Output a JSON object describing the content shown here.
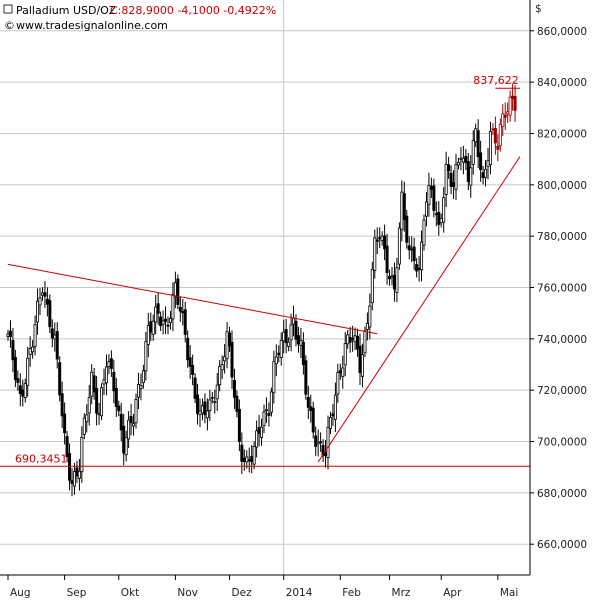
{
  "header": {
    "instrument": "Palladium USD/OZ",
    "quote": "C:828,9000 -4,1000 -0,4922%",
    "website": "www.tradesignalonline.com"
  },
  "chart_data": {
    "type": "candlestick",
    "title": "Palladium USD/OZ",
    "y_unit": "$",
    "ylim": [
      648,
      872
    ],
    "y_ticks": [
      660,
      680,
      700,
      720,
      740,
      760,
      780,
      800,
      820,
      840,
      860
    ],
    "y_tick_labels": [
      "660,0000",
      "680,0000",
      "700,0000",
      "720,0000",
      "740,0000",
      "760,0000",
      "780,0000",
      "800,0000",
      "820,0000",
      "840,0000",
      "860,0000"
    ],
    "x_labels": [
      "Aug",
      "Sep",
      "Okt",
      "Nov",
      "Dez",
      "2014",
      "Feb",
      "Mrz",
      "Apr",
      "Mai"
    ],
    "x_label_day_index": [
      0,
      23,
      45,
      68,
      90,
      112,
      135,
      155,
      176,
      199
    ],
    "grid": true,
    "anchor_series": [
      [
        0,
        740
      ],
      [
        5,
        718
      ],
      [
        10,
        738
      ],
      [
        14,
        762
      ],
      [
        17,
        748
      ],
      [
        19,
        738
      ],
      [
        23,
        700
      ],
      [
        26,
        685
      ],
      [
        29,
        690
      ],
      [
        31,
        705
      ],
      [
        34,
        725
      ],
      [
        37,
        712
      ],
      [
        40,
        730
      ],
      [
        43,
        722
      ],
      [
        47,
        700
      ],
      [
        51,
        708
      ],
      [
        54,
        725
      ],
      [
        57,
        745
      ],
      [
        61,
        748
      ],
      [
        64,
        745
      ],
      [
        68,
        760
      ],
      [
        71,
        745
      ],
      [
        75,
        725
      ],
      [
        78,
        710
      ],
      [
        82,
        712
      ],
      [
        86,
        728
      ],
      [
        89,
        740
      ],
      [
        92,
        718
      ],
      [
        94,
        700
      ],
      [
        97,
        692
      ],
      [
        100,
        695
      ],
      [
        103,
        708
      ],
      [
        106,
        715
      ],
      [
        108,
        728
      ],
      [
        110,
        735
      ],
      [
        113,
        740
      ],
      [
        116,
        748
      ],
      [
        119,
        735
      ],
      [
        122,
        712
      ],
      [
        126,
        700
      ],
      [
        129,
        695
      ],
      [
        132,
        712
      ],
      [
        134,
        725
      ],
      [
        137,
        738
      ],
      [
        140,
        740
      ],
      [
        143,
        730
      ],
      [
        146,
        748
      ],
      [
        149,
        775
      ],
      [
        151,
        780
      ],
      [
        154,
        770
      ],
      [
        157,
        760
      ],
      [
        160,
        792
      ],
      [
        163,
        773
      ],
      [
        165,
        775
      ],
      [
        167,
        765
      ],
      [
        169,
        788
      ],
      [
        172,
        798
      ],
      [
        175,
        784
      ],
      [
        178,
        805
      ],
      [
        181,
        798
      ],
      [
        184,
        815
      ],
      [
        187,
        804
      ],
      [
        190,
        818
      ],
      [
        193,
        800
      ],
      [
        196,
        822
      ],
      [
        199,
        815
      ],
      [
        202,
        828
      ],
      [
        205,
        835
      ],
      [
        206,
        829
      ]
    ],
    "annotations": [
      {
        "type": "horizontal_line",
        "value": 690.3451,
        "label": "690,3451",
        "color": "#cc0000"
      },
      {
        "type": "horizontal_line",
        "value": 837.622,
        "label": "837,622",
        "color": "#cc0000"
      },
      {
        "type": "trendline",
        "name": "descending-resistance",
        "from": [
          0,
          769
        ],
        "to": [
          150,
          742
        ],
        "color": "#cc0000"
      },
      {
        "type": "trendline",
        "name": "ascending-support",
        "from": [
          126,
          692
        ],
        "to": [
          208,
          811
        ],
        "color": "#cc0000"
      }
    ],
    "colors": {
      "candle_body": "#000000",
      "recent_candle_body": "#990000",
      "line": "#cc0000",
      "grid": "#c8c8c8"
    }
  }
}
